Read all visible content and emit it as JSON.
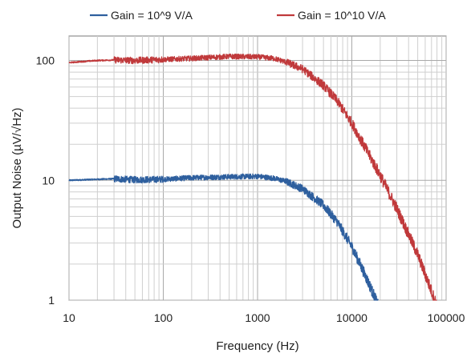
{
  "chart_data": {
    "type": "line",
    "title": "",
    "xlabel": "Frequency (Hz)",
    "ylabel": "Output Noise (µV/√Hz)",
    "x_scale": "log",
    "y_scale": "log",
    "xlim": [
      10,
      100000
    ],
    "ylim": [
      1,
      160
    ],
    "x_ticks": [
      10,
      100,
      1000,
      10000,
      100000
    ],
    "x_tick_labels": [
      "10",
      "100",
      "1000",
      "10000",
      "100000"
    ],
    "y_ticks": [
      1,
      10,
      100
    ],
    "y_tick_labels": [
      "1",
      "10",
      "100"
    ],
    "grid": true,
    "legend_position": "top",
    "series": [
      {
        "name": "Gain = 10^9 V/A",
        "color": "#2e5f9e",
        "x": [
          10,
          20,
          30,
          50,
          100,
          200,
          500,
          1000,
          1500,
          2000,
          3000,
          5000,
          7000,
          10000,
          13000,
          16000,
          19000
        ],
        "y": [
          10,
          10.2,
          10.3,
          10.1,
          10.2,
          10.5,
          10.7,
          10.8,
          10.4,
          9.8,
          8.5,
          6.2,
          4.5,
          2.8,
          1.8,
          1.25,
          0.9
        ]
      },
      {
        "name": "Gain = 10^10 V/A",
        "color": "#c0393b",
        "x": [
          10,
          20,
          30,
          50,
          100,
          200,
          500,
          1000,
          1500,
          2000,
          3000,
          5000,
          7000,
          10000,
          20000,
          30000,
          50000,
          80000
        ],
        "y": [
          96,
          100,
          101,
          100,
          102,
          104,
          108,
          107,
          104,
          97,
          85,
          62,
          46,
          30,
          11,
          5.8,
          2.4,
          0.9
        ]
      }
    ]
  }
}
